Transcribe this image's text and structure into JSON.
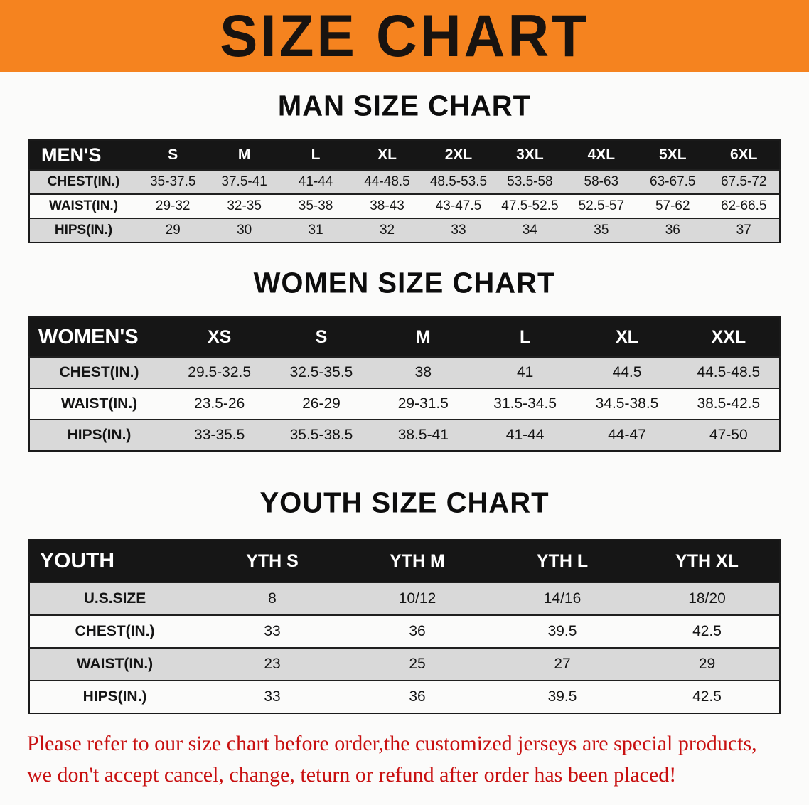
{
  "banner": {
    "title": "SIZE CHART",
    "background": "#F5831F"
  },
  "sections": [
    {
      "id": "men",
      "heading": "MAN SIZE CHART",
      "table": {
        "header": [
          "MEN'S",
          "S",
          "M",
          "L",
          "XL",
          "2XL",
          "3XL",
          "4XL",
          "5XL",
          "6XL"
        ],
        "rows": [
          [
            "CHEST(IN.)",
            "35-37.5",
            "37.5-41",
            "41-44",
            "44-48.5",
            "48.5-53.5",
            "53.5-58",
            "58-63",
            "63-67.5",
            "67.5-72"
          ],
          [
            "WAIST(IN.)",
            "29-32",
            "32-35",
            "35-38",
            "38-43",
            "43-47.5",
            "47.5-52.5",
            "52.5-57",
            "57-62",
            "62-66.5"
          ],
          [
            "HIPS(IN.)",
            "29",
            "30",
            "31",
            "32",
            "33",
            "34",
            "35",
            "36",
            "37"
          ]
        ]
      }
    },
    {
      "id": "women",
      "heading": "WOMEN SIZE CHART",
      "table": {
        "header": [
          "WOMEN'S",
          "XS",
          "S",
          "M",
          "L",
          "XL",
          "XXL"
        ],
        "rows": [
          [
            "CHEST(IN.)",
            "29.5-32.5",
            "32.5-35.5",
            "38",
            "41",
            "44.5",
            "44.5-48.5"
          ],
          [
            "WAIST(IN.)",
            "23.5-26",
            "26-29",
            "29-31.5",
            "31.5-34.5",
            "34.5-38.5",
            "38.5-42.5"
          ],
          [
            "HIPS(IN.)",
            "33-35.5",
            "35.5-38.5",
            "38.5-41",
            "41-44",
            "44-47",
            "47-50"
          ]
        ]
      }
    },
    {
      "id": "youth",
      "heading": "YOUTH SIZE CHART",
      "table": {
        "header": [
          "YOUTH",
          "YTH S",
          "YTH M",
          "YTH L",
          "YTH XL"
        ],
        "rows": [
          [
            "U.S.SIZE",
            "8",
            "10/12",
            "14/16",
            "18/20"
          ],
          [
            "CHEST(IN.)",
            "33",
            "36",
            "39.5",
            "42.5"
          ],
          [
            "WAIST(IN.)",
            "23",
            "25",
            "27",
            "29"
          ],
          [
            "HIPS(IN.)",
            "33",
            "36",
            "39.5",
            "42.5"
          ]
        ]
      }
    }
  ],
  "footer_note": {
    "color": "#C81010",
    "lines": [
      "Please refer to our size chart before order,the customized jerseys are special products,",
      "we don't accept cancel, change, teturn or refund after order has been placed!"
    ]
  }
}
